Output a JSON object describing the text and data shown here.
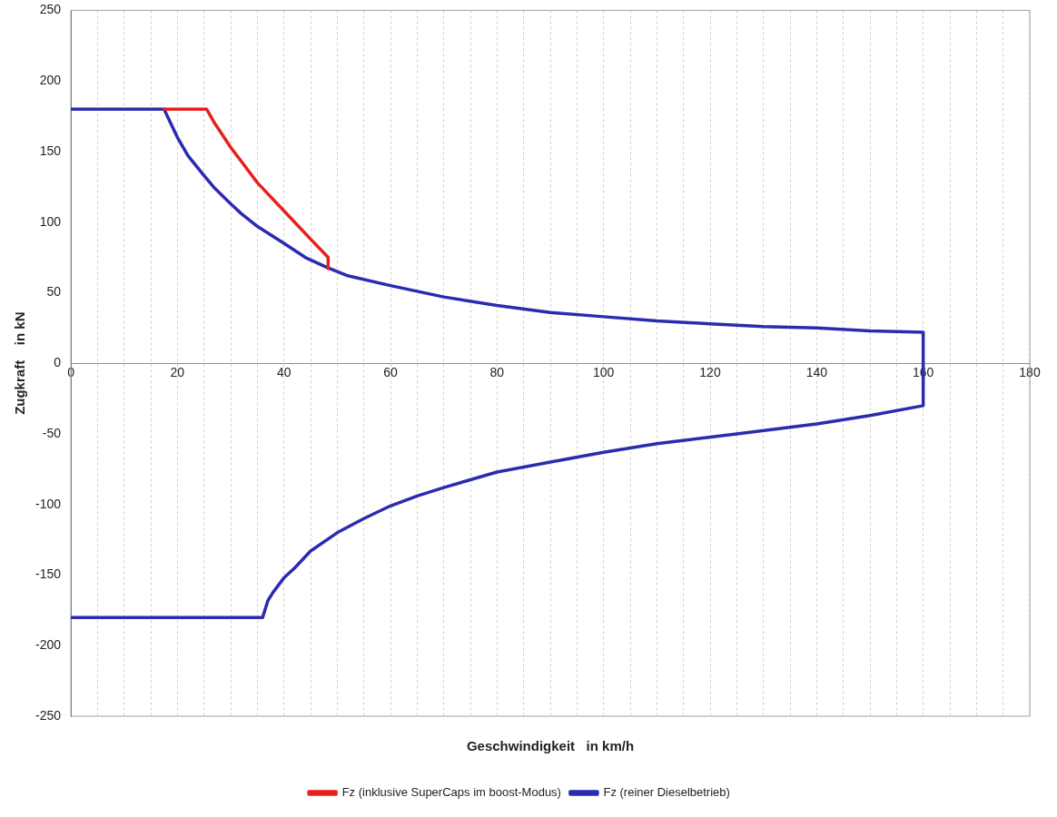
{
  "chart_data": {
    "type": "line",
    "xlabel": "Geschwindigkeit   in km/h",
    "ylabel": "Zugkraft    in kN",
    "xlim": [
      0,
      180
    ],
    "xticks": [
      0,
      {
        "value": 5,
        "label": null
      },
      {
        "value": 10,
        "label": null
      },
      {
        "value": 15,
        "label": null
      },
      20,
      {
        "value": 25,
        "label": null
      },
      {
        "value": 30,
        "label": null
      },
      {
        "value": 35,
        "label": null
      },
      40,
      {
        "value": 45,
        "label": null
      },
      {
        "value": 50,
        "label": null
      },
      {
        "value": 55,
        "label": null
      },
      60,
      {
        "value": 65,
        "label": null
      },
      {
        "value": 70,
        "label": null
      },
      {
        "value": 75,
        "label": null
      },
      80,
      {
        "value": 85,
        "label": null
      },
      {
        "value": 90,
        "label": null
      },
      {
        "value": 95,
        "label": null
      },
      100,
      {
        "value": 105,
        "label": null
      },
      {
        "value": 110,
        "label": null
      },
      {
        "value": 115,
        "label": null
      },
      120,
      {
        "value": 125,
        "label": null
      },
      {
        "value": 130,
        "label": null
      },
      {
        "value": 135,
        "label": null
      },
      140,
      {
        "value": 145,
        "label": null
      },
      {
        "value": 150,
        "label": null
      },
      {
        "value": 155,
        "label": null
      },
      160,
      {
        "value": 165,
        "label": null
      },
      {
        "value": 170,
        "label": null
      },
      {
        "value": 175,
        "label": null
      },
      180
    ],
    "ylim": [
      -250,
      250
    ],
    "yticks": [
      -250,
      -200,
      -150,
      -100,
      -50,
      0,
      50,
      100,
      150,
      200,
      250
    ],
    "grid": "x",
    "legend": "bottom",
    "marker": "none",
    "line_style": "solid",
    "series": [
      {
        "name": "Fz (inklusive SuperCaps im boost-Modus)",
        "color": "#e8201c",
        "x": [
          17.5,
          25.5,
          27,
          30,
          32,
          35,
          37,
          40,
          42,
          45,
          48.3,
          48.3
        ],
        "values": [
          180,
          180,
          170,
          153,
          143,
          128,
          120,
          108,
          100,
          88,
          75,
          67
        ]
      },
      {
        "name": "Fz (reiner Dieselbetrieb)",
        "color": "#2b2bb0",
        "x": [
          0,
          17.5,
          18.5,
          20,
          22,
          25,
          27,
          30,
          32,
          35,
          40,
          44,
          48,
          52,
          60,
          70,
          80,
          90,
          100,
          110,
          120,
          130,
          140,
          150,
          160,
          160,
          150,
          140,
          125,
          110,
          100,
          90,
          80,
          70,
          65,
          60,
          55,
          50,
          45,
          42,
          40,
          38,
          37,
          36,
          0
        ],
        "values": [
          180,
          180,
          172,
          160,
          147,
          133,
          124,
          113,
          106,
          97,
          85,
          75,
          68,
          62,
          55,
          47,
          41,
          36,
          33,
          30,
          28,
          26,
          25,
          23,
          22,
          -30,
          -37,
          -43,
          -50,
          -57,
          -63,
          -70,
          -77,
          -88,
          -94,
          -101,
          -110,
          -120,
          -133,
          -145,
          -152,
          -162,
          -168,
          -180,
          -180
        ]
      }
    ]
  }
}
